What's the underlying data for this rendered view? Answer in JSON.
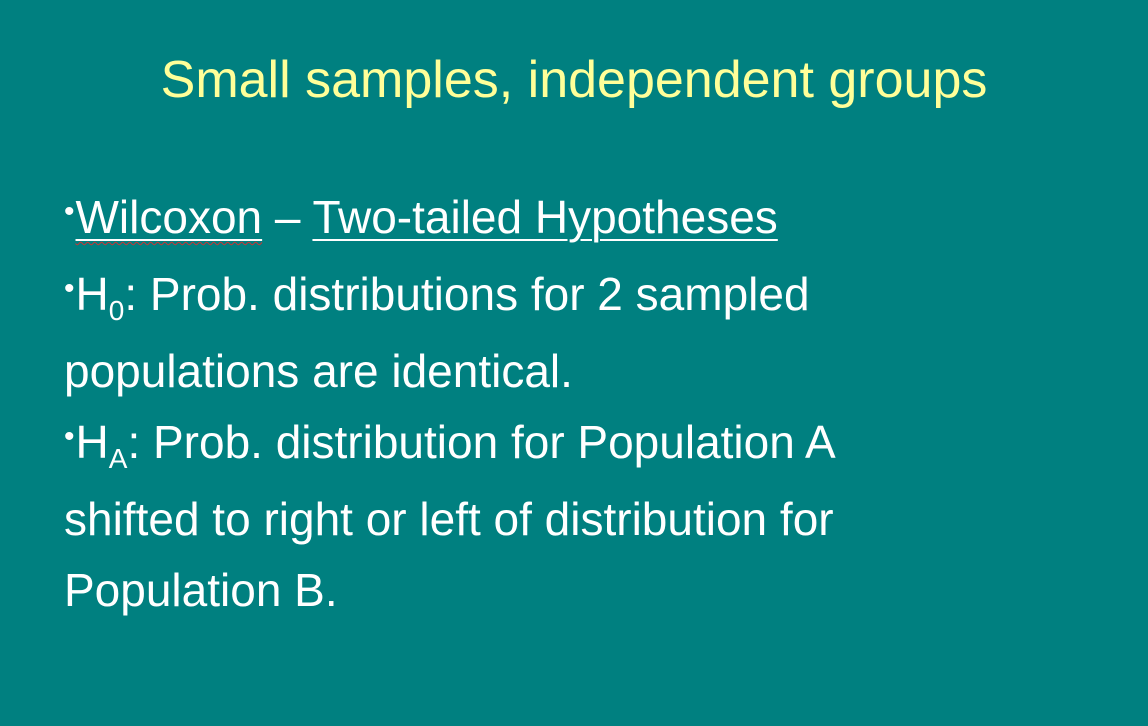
{
  "slide": {
    "title": "Small samples, independent groups",
    "bullet_char": "•",
    "line1": {
      "term": "Wilcoxon",
      "dash": " – ",
      "heading": "Two-tailed Hypotheses"
    },
    "line2": {
      "symbol": "H",
      "subscript": "0",
      "text": ": Prob. distributions for 2 sampled",
      "continuation": "populations are identical."
    },
    "line3": {
      "symbol": "H",
      "subscript": "A",
      "text": ": Prob. distribution for Population A",
      "continuation1": "shifted to right or left of distribution for",
      "continuation2": "Population B."
    }
  },
  "colors": {
    "background": "#008080",
    "title": "#ffff99",
    "body": "#ffffff"
  }
}
